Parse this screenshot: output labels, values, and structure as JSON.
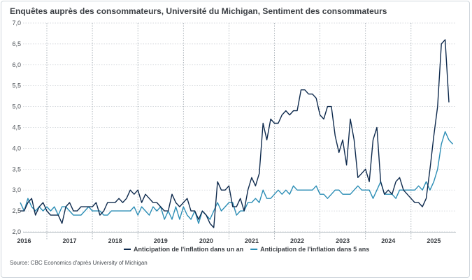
{
  "title": "Enquêtes auprès des consommateurs, Université du Michigan, Sentiment des consommateurs",
  "source": "Source: CBC Economics d'après University of Michigan",
  "chart_data": {
    "type": "line",
    "title": "Enquêtes auprès des consommateurs, Université du Michigan, Sentiment des consommateurs",
    "xlabel": "",
    "ylabel": "",
    "ylim": [
      2.0,
      7.0
    ],
    "yticks": [
      "2,0",
      "2,5",
      "3,0",
      "3,5",
      "4,0",
      "4,5",
      "5,0",
      "5,5",
      "6,0",
      "6,5",
      "7,0"
    ],
    "xticks": [
      "2016",
      "2017",
      "2018",
      "2019",
      "2020",
      "2021",
      "2022",
      "2023",
      "2024",
      "2025"
    ],
    "x_start": "2015-06",
    "x_frequency": "monthly",
    "grid": "horizontal dotted gridlines, vertical dotted year separators",
    "legend_position": "bottom",
    "series": [
      {
        "name": "Anticipation de l'inflation dans un an",
        "color": "#0e2a4d",
        "values": [
          2.5,
          2.5,
          2.7,
          2.8,
          2.4,
          2.6,
          2.7,
          2.5,
          2.4,
          2.4,
          2.4,
          2.2,
          2.6,
          2.7,
          2.5,
          2.5,
          2.6,
          2.6,
          2.6,
          2.6,
          2.7,
          2.4,
          2.5,
          2.7,
          2.7,
          2.7,
          2.8,
          2.7,
          2.8,
          3.0,
          2.9,
          3.0,
          2.7,
          2.9,
          2.8,
          2.7,
          2.7,
          2.6,
          2.5,
          2.5,
          2.9,
          2.7,
          2.6,
          2.7,
          2.8,
          2.5,
          2.5,
          2.3,
          2.5,
          2.4,
          2.2,
          2.1,
          3.2,
          3.0,
          3.0,
          3.1,
          2.6,
          2.6,
          2.8,
          2.5,
          3.0,
          3.3,
          3.1,
          3.4,
          4.6,
          4.2,
          4.7,
          4.6,
          4.6,
          4.8,
          4.9,
          4.8,
          4.9,
          4.9,
          5.4,
          5.4,
          5.3,
          5.3,
          5.2,
          4.8,
          4.7,
          5.0,
          5.0,
          4.3,
          3.9,
          4.2,
          3.6,
          4.7,
          4.2,
          3.3,
          3.4,
          3.5,
          3.2,
          4.2,
          4.5,
          3.2,
          2.9,
          3.0,
          2.9,
          3.2,
          3.3,
          3.0,
          2.9,
          2.8,
          2.7,
          2.7,
          2.6,
          2.8,
          3.5,
          4.3,
          5.0,
          6.5,
          6.6,
          5.1
        ]
      },
      {
        "name": "Anticipation de l'inflation dans 5 ans",
        "color": "#2b8db5",
        "values": [
          2.7,
          2.5,
          2.8,
          2.6,
          2.5,
          2.6,
          2.5,
          2.6,
          2.5,
          2.6,
          2.4,
          2.6,
          2.6,
          2.5,
          2.4,
          2.4,
          2.4,
          2.5,
          2.6,
          2.5,
          2.5,
          2.5,
          2.4,
          2.4,
          2.5,
          2.5,
          2.5,
          2.5,
          2.5,
          2.5,
          2.6,
          2.4,
          2.6,
          2.5,
          2.4,
          2.6,
          2.5,
          2.6,
          2.3,
          2.5,
          2.3,
          2.6,
          2.3,
          2.6,
          2.4,
          2.3,
          2.5,
          2.2,
          2.5,
          2.4,
          2.3,
          2.5,
          2.7,
          2.5,
          2.6,
          2.7,
          2.7,
          2.4,
          2.5,
          2.5,
          2.7,
          2.7,
          2.8,
          2.7,
          3.0,
          2.8,
          2.8,
          2.9,
          3.0,
          2.9,
          3.0,
          2.9,
          3.1,
          3.0,
          3.0,
          3.0,
          3.0,
          3.0,
          3.1,
          2.9,
          2.9,
          2.8,
          2.9,
          3.0,
          3.0,
          2.9,
          2.9,
          2.9,
          3.0,
          3.1,
          3.0,
          3.0,
          3.0,
          2.8,
          3.0,
          3.2,
          2.9,
          2.9,
          2.9,
          2.8,
          3.0,
          3.0,
          3.0,
          3.0,
          3.0,
          3.1,
          3.0,
          3.2,
          3.0,
          3.2,
          3.5,
          4.1,
          4.4,
          4.2,
          4.1
        ]
      }
    ]
  }
}
